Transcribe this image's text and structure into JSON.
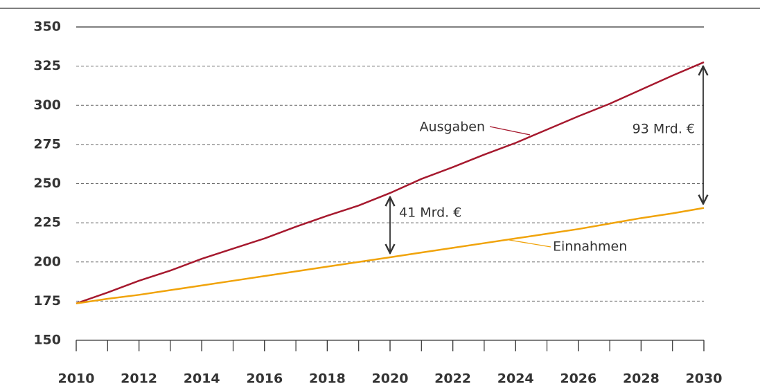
{
  "chart_data": {
    "type": "line",
    "x": [
      2010,
      2011,
      2012,
      2013,
      2014,
      2015,
      2016,
      2017,
      2018,
      2019,
      2020,
      2021,
      2022,
      2023,
      2024,
      2025,
      2026,
      2027,
      2028,
      2029,
      2030
    ],
    "series": [
      {
        "name": "Ausgaben",
        "color": "#a6192e",
        "values": [
          173.5,
          180.5,
          188,
          194.5,
          202,
          208.5,
          215,
          222.5,
          229.5,
          236,
          244,
          253,
          260.5,
          268.5,
          276,
          284.5,
          293,
          301,
          310,
          319,
          327.5
        ]
      },
      {
        "name": "Einnahmen",
        "color": "#f0a30a",
        "values": [
          173.5,
          176.5,
          179,
          182,
          185,
          188,
          191,
          194,
          197,
          200,
          203,
          206,
          209,
          212,
          215,
          218,
          221,
          224.5,
          228,
          231,
          234.5
        ]
      }
    ],
    "annotations": [
      "41 Mrd. €",
      "93 Mrd. €"
    ],
    "xlim": [
      2010,
      2030
    ],
    "xticks": [
      2010,
      2012,
      2014,
      2016,
      2018,
      2020,
      2022,
      2024,
      2026,
      2028,
      2030
    ],
    "ylim": [
      150,
      350
    ],
    "yticks": [
      150,
      175,
      200,
      225,
      250,
      275,
      300,
      325,
      350
    ],
    "grid": true
  }
}
